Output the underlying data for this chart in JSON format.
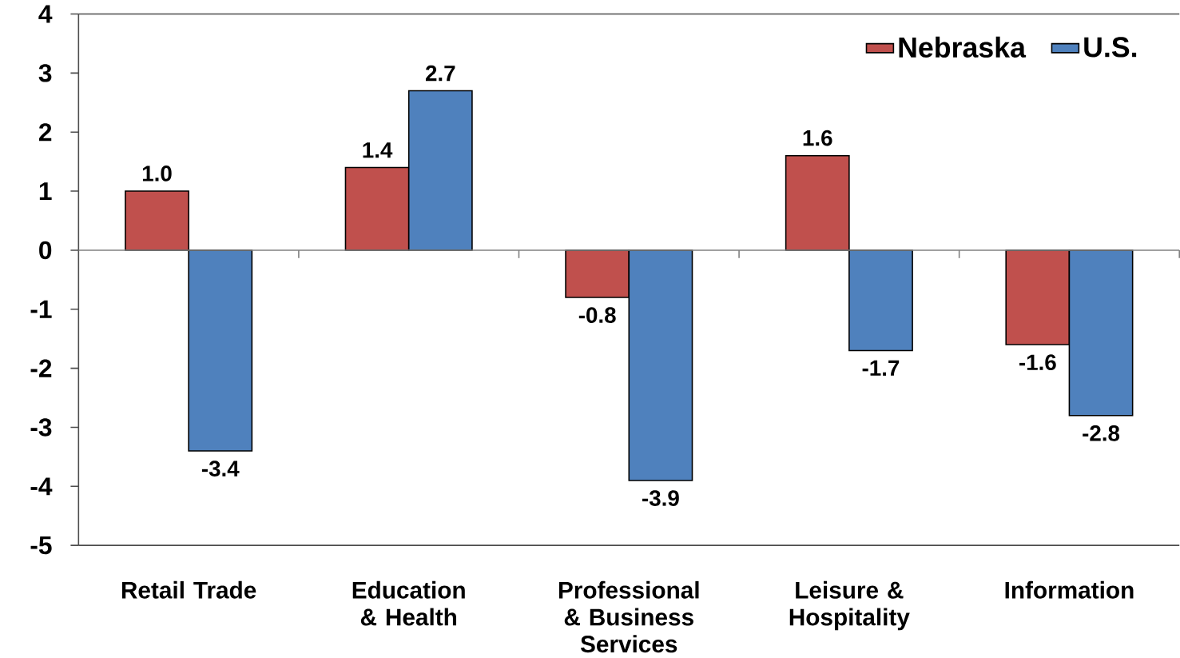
{
  "chart_data": {
    "type": "bar",
    "categories": [
      "Retail Trade",
      "Education & Health",
      "Professional & Business Services",
      "Leisure & Hospitality",
      "Information"
    ],
    "series": [
      {
        "name": "Nebraska",
        "color": "#c0504d",
        "values": [
          1.0,
          1.4,
          -0.8,
          1.6,
          -1.6
        ],
        "value_labels": [
          "1.0",
          "1.4",
          "-0.8",
          "1.6",
          "-1.6"
        ]
      },
      {
        "name": "U.S.",
        "color": "#4f81bd",
        "values": [
          -3.4,
          2.7,
          -3.9,
          -1.7,
          -2.8
        ],
        "value_labels": [
          "-3.4",
          "2.7",
          "-3.9",
          "-1.7",
          "-2.8"
        ]
      }
    ],
    "ylim": [
      -5,
      4
    ],
    "yticks": [
      -5,
      -4,
      -3,
      -2,
      -1,
      0,
      1,
      2,
      3,
      4
    ],
    "legend": "top right"
  }
}
